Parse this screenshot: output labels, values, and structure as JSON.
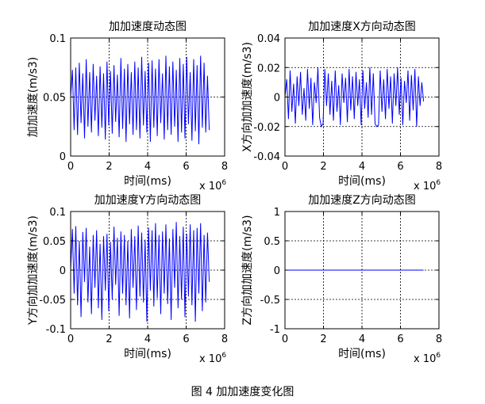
{
  "figure": {
    "caption": "图 4  加加速度变化图"
  },
  "chart_data": [
    {
      "type": "line",
      "title": "加加速度动态图",
      "xlabel": "时间(ms)",
      "ylabel": "加加速度(m/s3)",
      "xlim": [
        0,
        8
      ],
      "ylim": [
        0,
        0.1
      ],
      "x_ticks": [
        0,
        2,
        4,
        6,
        8
      ],
      "y_ticks": [
        0,
        0.05,
        0.1
      ],
      "y_tick_labels": [
        "0",
        "0.05",
        "0.1"
      ],
      "x_multiplier": "x 10^6",
      "grid": true,
      "color": "#0000ff",
      "series": [
        {
          "x": [
            0.0,
            0.09,
            0.18,
            0.27,
            0.36,
            0.45,
            0.54,
            0.63,
            0.72,
            0.81,
            0.9,
            0.99,
            1.08,
            1.17,
            1.26,
            1.35,
            1.44,
            1.53,
            1.62,
            1.71,
            1.8,
            1.89,
            1.98,
            2.07,
            2.16,
            2.25,
            2.34,
            2.43,
            2.52,
            2.61,
            2.7,
            2.79,
            2.88,
            2.97,
            3.06,
            3.15,
            3.24,
            3.33,
            3.42,
            3.51,
            3.6,
            3.69,
            3.78,
            3.87,
            3.96,
            4.05,
            4.14,
            4.23,
            4.32,
            4.41,
            4.5,
            4.59,
            4.68,
            4.77,
            4.86,
            4.95,
            5.04,
            5.13,
            5.22,
            5.31,
            5.4,
            5.49,
            5.58,
            5.67,
            5.76,
            5.85,
            5.94,
            6.03,
            6.12,
            6.21,
            6.3,
            6.39,
            6.48,
            6.57,
            6.66,
            6.75,
            6.84,
            6.93,
            7.02,
            7.11,
            7.2
          ],
          "y": [
            0.05,
            0.073,
            0.022,
            0.075,
            0.018,
            0.079,
            0.028,
            0.07,
            0.015,
            0.082,
            0.025,
            0.071,
            0.02,
            0.078,
            0.03,
            0.068,
            0.017,
            0.076,
            0.024,
            0.07,
            0.014,
            0.08,
            0.026,
            0.072,
            0.019,
            0.077,
            0.029,
            0.069,
            0.016,
            0.083,
            0.023,
            0.074,
            0.012,
            0.078,
            0.027,
            0.071,
            0.018,
            0.08,
            0.022,
            0.075,
            0.015,
            0.084,
            0.026,
            0.072,
            0.02,
            0.079,
            0.012,
            0.081,
            0.024,
            0.074,
            0.017,
            0.082,
            0.028,
            0.07,
            0.014,
            0.085,
            0.022,
            0.076,
            0.018,
            0.08,
            0.025,
            0.073,
            0.012,
            0.083,
            0.02,
            0.078,
            0.015,
            0.084,
            0.027,
            0.071,
            0.013,
            0.082,
            0.021,
            0.077,
            0.01,
            0.085,
            0.024,
            0.079,
            0.02,
            0.068,
            0.022
          ]
        }
      ]
    },
    {
      "type": "line",
      "title": "加加速度X方向动态图",
      "xlabel": "时间(ms)",
      "ylabel": "X方向加加速度(m/s3)",
      "xlim": [
        0,
        8
      ],
      "ylim": [
        -0.04,
        0.04
      ],
      "x_ticks": [
        0,
        2,
        4,
        6,
        8
      ],
      "y_ticks": [
        -0.04,
        -0.02,
        0,
        0.02,
        0.04
      ],
      "y_tick_labels": [
        "-0.04",
        "-0.02",
        "0",
        "0.02",
        "0.04"
      ],
      "x_multiplier": "x 10^6",
      "grid": true,
      "color": "#0000ff",
      "series": [
        {
          "x": [
            0.0,
            0.09,
            0.18,
            0.27,
            0.36,
            0.45,
            0.54,
            0.63,
            0.72,
            0.81,
            0.9,
            0.99,
            1.08,
            1.17,
            1.26,
            1.35,
            1.44,
            1.53,
            1.62,
            1.71,
            1.8,
            1.89,
            1.98,
            2.07,
            2.16,
            2.25,
            2.34,
            2.43,
            2.52,
            2.61,
            2.7,
            2.79,
            2.88,
            2.97,
            3.06,
            3.15,
            3.24,
            3.33,
            3.42,
            3.51,
            3.6,
            3.69,
            3.78,
            3.87,
            3.96,
            4.05,
            4.14,
            4.23,
            4.32,
            4.41,
            4.5,
            4.59,
            4.68,
            4.77,
            4.86,
            4.95,
            5.04,
            5.13,
            5.22,
            5.31,
            5.4,
            5.49,
            5.58,
            5.67,
            5.76,
            5.85,
            5.94,
            6.03,
            6.12,
            6.21,
            6.3,
            6.39,
            6.48,
            6.57,
            6.66,
            6.75,
            6.84,
            6.93,
            7.02,
            7.11,
            7.2
          ],
          "y": [
            0.0,
            0.012,
            -0.015,
            0.018,
            -0.01,
            0.009,
            -0.018,
            0.014,
            -0.006,
            0.017,
            -0.012,
            0.006,
            -0.016,
            0.019,
            -0.008,
            0.013,
            -0.019,
            0.01,
            -0.004,
            0.02,
            -0.014,
            -0.02,
            -0.018,
            0.019,
            -0.006,
            0.016,
            -0.012,
            0.011,
            -0.016,
            0.018,
            -0.01,
            0.008,
            -0.019,
            0.016,
            -0.004,
            0.013,
            -0.017,
            0.019,
            -0.009,
            0.014,
            -0.015,
            0.017,
            -0.006,
            0.012,
            -0.019,
            0.018,
            -0.008,
            0.01,
            -0.014,
            0.02,
            -0.012,
            0.016,
            -0.018,
            -0.02,
            -0.019,
            0.018,
            -0.01,
            0.012,
            -0.015,
            0.019,
            -0.008,
            0.014,
            -0.018,
            0.016,
            -0.006,
            0.02,
            -0.012,
            0.013,
            -0.019,
            0.011,
            -0.004,
            0.018,
            -0.016,
            0.015,
            -0.009,
            0.019,
            -0.02,
            0.014,
            -0.006,
            0.01,
            -0.003
          ]
        }
      ]
    },
    {
      "type": "line",
      "title": "加加速度Y方向动态图",
      "xlabel": "时间(ms)",
      "ylabel": "Y方向加加速度(m/s3)",
      "xlim": [
        0,
        8
      ],
      "ylim": [
        -0.1,
        0.1
      ],
      "x_ticks": [
        0,
        2,
        4,
        6,
        8
      ],
      "y_ticks": [
        -0.1,
        -0.05,
        0,
        0.05,
        0.1
      ],
      "y_tick_labels": [
        "-0.1",
        "-0.05",
        "0",
        "0.05",
        "0.1"
      ],
      "x_multiplier": "x 10^6",
      "grid": true,
      "color": "#0000ff",
      "series": [
        {
          "x": [
            0.0,
            0.09,
            0.18,
            0.27,
            0.36,
            0.45,
            0.54,
            0.63,
            0.72,
            0.81,
            0.9,
            0.99,
            1.08,
            1.17,
            1.26,
            1.35,
            1.44,
            1.53,
            1.62,
            1.71,
            1.8,
            1.89,
            1.98,
            2.07,
            2.16,
            2.25,
            2.34,
            2.43,
            2.52,
            2.61,
            2.7,
            2.79,
            2.88,
            2.97,
            3.06,
            3.15,
            3.24,
            3.33,
            3.42,
            3.51,
            3.6,
            3.69,
            3.78,
            3.87,
            3.96,
            4.05,
            4.14,
            4.23,
            4.32,
            4.41,
            4.5,
            4.59,
            4.68,
            4.77,
            4.86,
            4.95,
            5.04,
            5.13,
            5.22,
            5.31,
            5.4,
            5.49,
            5.58,
            5.67,
            5.76,
            5.85,
            5.94,
            6.03,
            6.12,
            6.21,
            6.3,
            6.39,
            6.48,
            6.57,
            6.66,
            6.75,
            6.84,
            6.93,
            7.02,
            7.11,
            7.2
          ],
          "y": [
            0.0,
            0.07,
            -0.04,
            0.075,
            -0.06,
            0.05,
            -0.08,
            0.065,
            -0.02,
            0.072,
            -0.055,
            0.04,
            -0.075,
            0.06,
            -0.03,
            0.068,
            -0.065,
            0.045,
            -0.085,
            0.058,
            -0.035,
            0.062,
            -0.07,
            0.048,
            -0.05,
            0.074,
            -0.025,
            0.055,
            -0.078,
            0.066,
            -0.04,
            0.06,
            -0.06,
            0.05,
            -0.082,
            0.07,
            -0.03,
            0.058,
            -0.068,
            0.076,
            -0.045,
            0.064,
            -0.055,
            0.052,
            -0.088,
            0.072,
            -0.035,
            0.068,
            -0.062,
            0.08,
            -0.048,
            0.06,
            -0.075,
            0.066,
            -0.04,
            0.078,
            -0.058,
            0.054,
            -0.085,
            0.07,
            -0.03,
            0.082,
            -0.065,
            0.058,
            -0.05,
            0.074,
            -0.08,
            0.062,
            -0.045,
            0.078,
            -0.06,
            0.068,
            -0.088,
            0.072,
            -0.04,
            0.08,
            -0.07,
            0.06,
            -0.055,
            0.064,
            -0.02
          ]
        }
      ]
    },
    {
      "type": "line",
      "title": "加加速度Z方向动态图",
      "xlabel": "时间(ms)",
      "ylabel": "Z方向加加速度(m/s3)",
      "xlim": [
        0,
        8
      ],
      "ylim": [
        -1,
        1
      ],
      "x_ticks": [
        0,
        2,
        4,
        6,
        8
      ],
      "y_ticks": [
        -1,
        -0.5,
        0,
        0.5,
        1
      ],
      "y_tick_labels": [
        "-1",
        "-0.5",
        "0",
        "0.5",
        "1"
      ],
      "x_multiplier": "x 10^6",
      "grid": true,
      "color": "#0000ff",
      "series": [
        {
          "x": [
            0,
            7.2
          ],
          "y": [
            0,
            0
          ]
        }
      ]
    }
  ]
}
